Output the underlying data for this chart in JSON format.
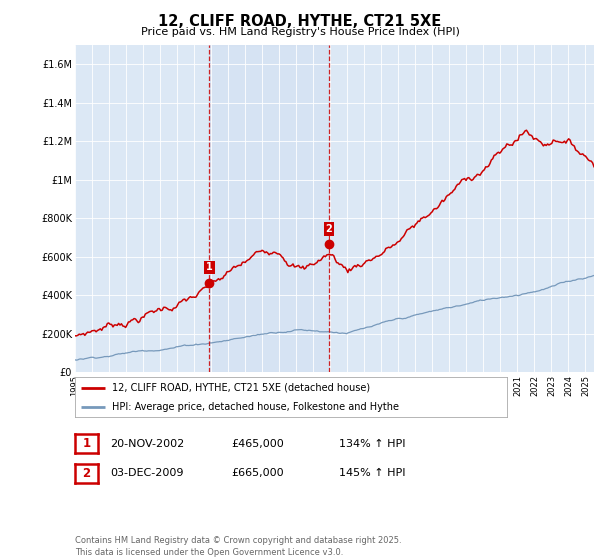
{
  "title": "12, CLIFF ROAD, HYTHE, CT21 5XE",
  "subtitle": "Price paid vs. HM Land Registry's House Price Index (HPI)",
  "legend_line1": "12, CLIFF ROAD, HYTHE, CT21 5XE (detached house)",
  "legend_line2": "HPI: Average price, detached house, Folkestone and Hythe",
  "annotation1_date": "20-NOV-2002",
  "annotation1_price": "£465,000",
  "annotation1_hpi": "134% ↑ HPI",
  "annotation2_date": "03-DEC-2009",
  "annotation2_price": "£665,000",
  "annotation2_hpi": "145% ↑ HPI",
  "footnote": "Contains HM Land Registry data © Crown copyright and database right 2025.\nThis data is licensed under the Open Government Licence v3.0.",
  "red_color": "#cc0000",
  "blue_color": "#7799bb",
  "vline_color": "#cc0000",
  "background_color": "#dce8f5",
  "ylim": [
    0,
    1700000
  ],
  "yticks": [
    0,
    200000,
    400000,
    600000,
    800000,
    1000000,
    1200000,
    1400000,
    1600000
  ],
  "ytick_labels": [
    "£0",
    "£200K",
    "£400K",
    "£600K",
    "£800K",
    "£1M",
    "£1.2M",
    "£1.4M",
    "£1.6M"
  ],
  "marker1_x": 2002.9,
  "marker1_y": 465000,
  "marker2_x": 2009.92,
  "marker2_y": 665000,
  "xmin": 1995,
  "xmax": 2025.5
}
